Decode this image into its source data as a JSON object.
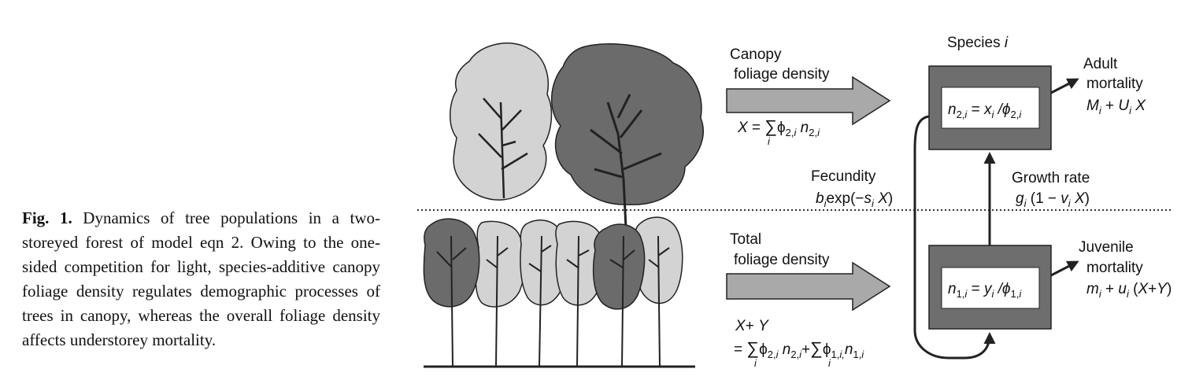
{
  "caption": {
    "label": "Fig. 1.",
    "text": " Dynamics of tree populations in a two-storeyed forest of model eqn 2. Owing to the one-sided competition for light, species-additive canopy foliage density regulates demographic processes of trees in canopy, whereas the overall foliage density affects understorey mortality."
  },
  "diagram": {
    "species_label": "Species ",
    "species_index": "i",
    "canopy_label_1": "Canopy",
    "canopy_label_2": "foliage density",
    "total_label_1": "Total",
    "total_label_2": "foliage density",
    "fecundity_label": "Fecundity",
    "growth_label": "Growth rate",
    "adult_label_1": "Adult",
    "adult_label_2": "mortality",
    "juvenile_label_1": "Juvenile",
    "juvenile_label_2": "mortality"
  },
  "colors": {
    "box_fill": "#6e6e6e",
    "arrow_fill": "#a9a9a9",
    "tree_light": "#d3d3d3",
    "tree_dark": "#6b6b6b"
  }
}
